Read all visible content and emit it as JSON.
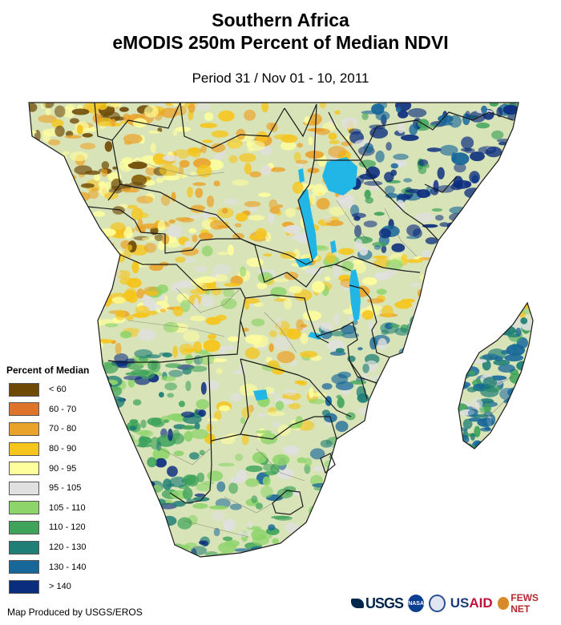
{
  "header": {
    "title_line1": "Southern Africa",
    "title_line2": "eMODIS 250m Percent of Median NDVI",
    "subtitle": "Period 31 / Nov 01 - 10, 2011"
  },
  "legend": {
    "title": "Percent of Median",
    "items": [
      {
        "label": "< 60",
        "color": "#6f4a06"
      },
      {
        "label": "60 - 70",
        "color": "#de742a"
      },
      {
        "label": "70 - 80",
        "color": "#eaa32a"
      },
      {
        "label": "80 - 90",
        "color": "#f5c51c"
      },
      {
        "label": "90 - 95",
        "color": "#fefe9d"
      },
      {
        "label": "95 - 105",
        "color": "#e0e0e0"
      },
      {
        "label": "105 - 110",
        "color": "#8dd46b"
      },
      {
        "label": "110 - 120",
        "color": "#3fa35a"
      },
      {
        "label": "120 - 130",
        "color": "#1f7f76"
      },
      {
        "label": "130 - 140",
        "color": "#17679a"
      },
      {
        "label": "> 140",
        "color": "#0b2d7e"
      }
    ]
  },
  "footer": {
    "credit": "Map Produced by USGS/EROS",
    "logos": {
      "usgs": "USGS",
      "nasa": "NASA",
      "usaid_prefix": "US",
      "usaid_suffix": "AID",
      "fews": "FEWS NET"
    }
  },
  "colors": {
    "land_base": "#d9e3b8",
    "water": "#21b6e6",
    "border": "#1a1a1a"
  }
}
